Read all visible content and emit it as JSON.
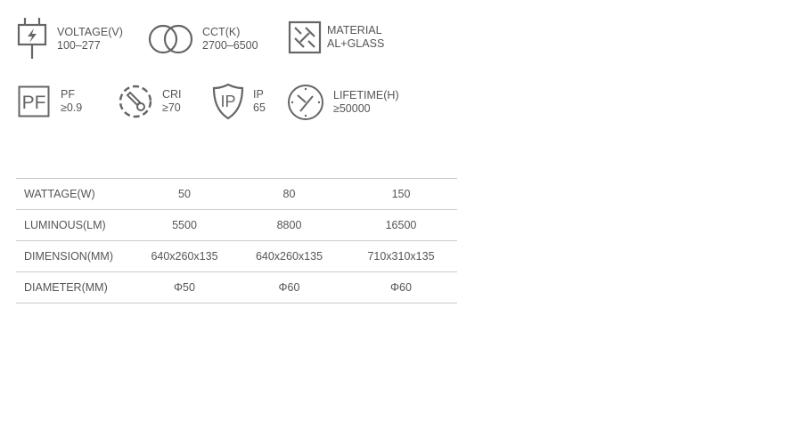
{
  "specs": [
    {
      "icon": "power-plug-icon",
      "label": "VOLTAGE(V)",
      "value": "100–277"
    },
    {
      "icon": "overlapping-circles-icon",
      "label": "CCT(K)",
      "value": "2700–6500"
    },
    {
      "icon": "material-icon",
      "label": "MATERIAL",
      "value": "AL+GLASS"
    },
    {
      "icon": "pf-icon",
      "label": "PF",
      "value": "≥0.9"
    },
    {
      "icon": "thermometer-icon",
      "label": "CRI",
      "value": "≥70"
    },
    {
      "icon": "ip-shield-icon",
      "label": "IP",
      "value": "65"
    },
    {
      "icon": "clock-icon",
      "label": "LIFETIME(H)",
      "value": "≥50000"
    }
  ],
  "pf_icon_text": "PF",
  "ip_icon_text": "IP",
  "table": {
    "rows": [
      {
        "label": "WATTAGE(W)",
        "values": [
          "50",
          "80",
          "150"
        ]
      },
      {
        "label": "LUMINOUS(LM)",
        "values": [
          "5500",
          "8800",
          "16500"
        ]
      },
      {
        "label": "DIMENSION(MM)",
        "values": [
          "640x260x135",
          "640x260x135",
          "710x310x135"
        ]
      },
      {
        "label": "DIAMETER(MM)",
        "values": [
          "Φ50",
          "Φ60",
          "Φ60"
        ]
      }
    ]
  }
}
